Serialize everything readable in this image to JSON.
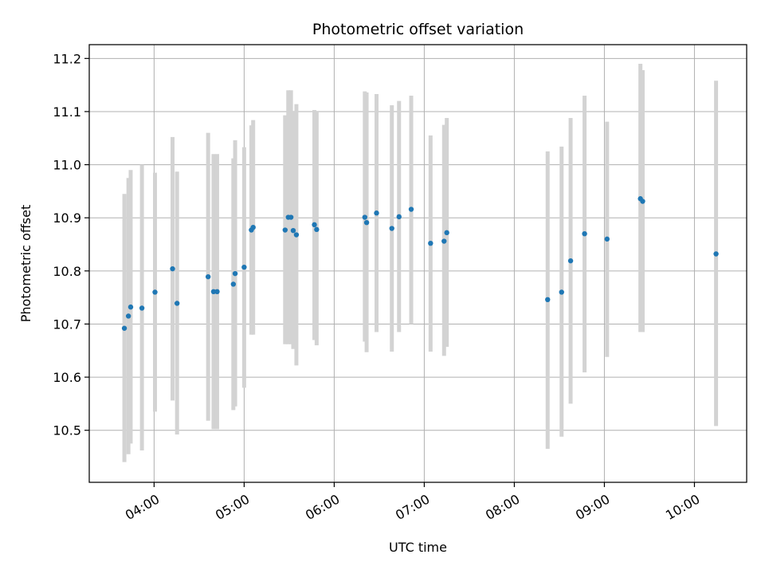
{
  "chart_data": {
    "type": "scatter",
    "title": "Photometric offset variation",
    "xlabel": "UTC time",
    "ylabel": "Photometric offset",
    "grid": true,
    "x_unit": "hours UTC (decimal)",
    "xlim": [
      3.28,
      10.58
    ],
    "ylim": [
      10.402,
      11.226
    ],
    "x_ticks": [
      4,
      5,
      6,
      7,
      8,
      9,
      10
    ],
    "x_tick_labels": [
      "04:00",
      "05:00",
      "06:00",
      "07:00",
      "08:00",
      "09:00",
      "10:00"
    ],
    "y_ticks": [
      10.5,
      10.6,
      10.7,
      10.8,
      10.9,
      11.0,
      11.1,
      11.2
    ],
    "y_tick_labels": [
      "10.5",
      "10.6",
      "10.7",
      "10.8",
      "10.9",
      "11.0",
      "11.1",
      "11.2"
    ],
    "colors": {
      "point": "#1f77b4",
      "errorbar": "#d3d3d3",
      "grid": "#b0b0b0",
      "axis": "#000000"
    },
    "series": [
      {
        "name": "Photometric offset",
        "points": [
          {
            "x": 3.67,
            "y": 10.692,
            "ylo": 10.44,
            "yhi": 10.945
          },
          {
            "x": 3.715,
            "y": 10.715,
            "ylo": 10.455,
            "yhi": 10.975
          },
          {
            "x": 3.74,
            "y": 10.732,
            "ylo": 10.475,
            "yhi": 10.99
          },
          {
            "x": 3.865,
            "y": 10.73,
            "ylo": 10.462,
            "yhi": 11.0
          },
          {
            "x": 4.01,
            "y": 10.76,
            "ylo": 10.535,
            "yhi": 10.985
          },
          {
            "x": 4.205,
            "y": 10.804,
            "ylo": 10.556,
            "yhi": 11.052
          },
          {
            "x": 4.255,
            "y": 10.739,
            "ylo": 10.492,
            "yhi": 10.987
          },
          {
            "x": 4.6,
            "y": 10.789,
            "ylo": 10.518,
            "yhi": 11.06
          },
          {
            "x": 4.66,
            "y": 10.761,
            "ylo": 10.502,
            "yhi": 11.02
          },
          {
            "x": 4.7,
            "y": 10.761,
            "ylo": 10.502,
            "yhi": 11.02
          },
          {
            "x": 4.88,
            "y": 10.775,
            "ylo": 10.538,
            "yhi": 11.012
          },
          {
            "x": 4.9,
            "y": 10.795,
            "ylo": 10.545,
            "yhi": 11.046
          },
          {
            "x": 5.0,
            "y": 10.807,
            "ylo": 10.58,
            "yhi": 11.033
          },
          {
            "x": 5.08,
            "y": 10.877,
            "ylo": 10.68,
            "yhi": 11.074
          },
          {
            "x": 5.1,
            "y": 10.882,
            "ylo": 10.68,
            "yhi": 11.084
          },
          {
            "x": 5.455,
            "y": 10.877,
            "ylo": 10.662,
            "yhi": 11.093
          },
          {
            "x": 5.49,
            "y": 10.901,
            "ylo": 10.662,
            "yhi": 11.14
          },
          {
            "x": 5.52,
            "y": 10.901,
            "ylo": 10.662,
            "yhi": 11.14
          },
          {
            "x": 5.545,
            "y": 10.876,
            "ylo": 10.653,
            "yhi": 11.1
          },
          {
            "x": 5.58,
            "y": 10.868,
            "ylo": 10.622,
            "yhi": 11.114
          },
          {
            "x": 5.78,
            "y": 10.887,
            "ylo": 10.67,
            "yhi": 11.103
          },
          {
            "x": 5.805,
            "y": 10.878,
            "ylo": 10.66,
            "yhi": 11.1
          },
          {
            "x": 6.34,
            "y": 10.901,
            "ylo": 10.667,
            "yhi": 11.138
          },
          {
            "x": 6.36,
            "y": 10.891,
            "ylo": 10.647,
            "yhi": 11.136
          },
          {
            "x": 6.47,
            "y": 10.909,
            "ylo": 10.685,
            "yhi": 11.133
          },
          {
            "x": 6.64,
            "y": 10.88,
            "ylo": 10.648,
            "yhi": 11.112
          },
          {
            "x": 6.72,
            "y": 10.902,
            "ylo": 10.685,
            "yhi": 11.12
          },
          {
            "x": 6.855,
            "y": 10.916,
            "ylo": 10.7,
            "yhi": 11.13
          },
          {
            "x": 7.07,
            "y": 10.852,
            "ylo": 10.648,
            "yhi": 11.055
          },
          {
            "x": 7.22,
            "y": 10.856,
            "ylo": 10.64,
            "yhi": 11.075
          },
          {
            "x": 7.25,
            "y": 10.872,
            "ylo": 10.657,
            "yhi": 11.088
          },
          {
            "x": 8.37,
            "y": 10.746,
            "ylo": 10.465,
            "yhi": 11.025
          },
          {
            "x": 8.525,
            "y": 10.76,
            "ylo": 10.488,
            "yhi": 11.034
          },
          {
            "x": 8.625,
            "y": 10.819,
            "ylo": 10.55,
            "yhi": 11.088
          },
          {
            "x": 8.78,
            "y": 10.87,
            "ylo": 10.609,
            "yhi": 11.13
          },
          {
            "x": 9.03,
            "y": 10.86,
            "ylo": 10.638,
            "yhi": 11.081
          },
          {
            "x": 9.4,
            "y": 10.936,
            "ylo": 10.685,
            "yhi": 11.19
          },
          {
            "x": 9.425,
            "y": 10.931,
            "ylo": 10.685,
            "yhi": 11.178
          },
          {
            "x": 10.24,
            "y": 10.832,
            "ylo": 10.508,
            "yhi": 11.158
          }
        ]
      }
    ]
  }
}
